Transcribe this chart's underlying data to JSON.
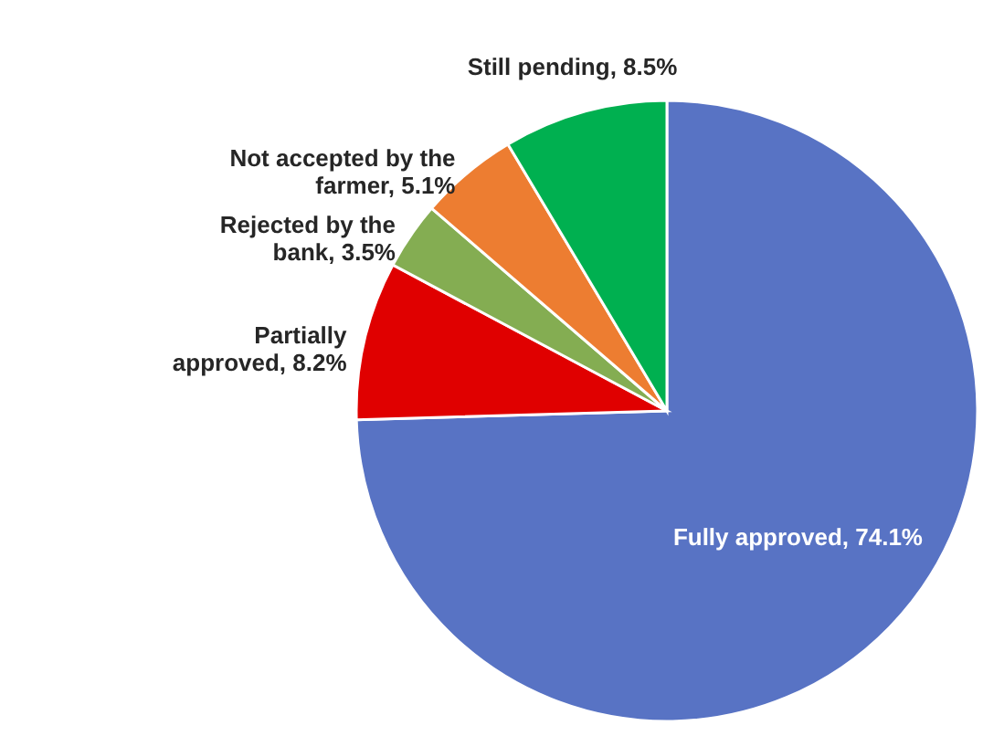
{
  "chart_data": {
    "type": "pie",
    "categories": [
      "Fully approved",
      "Partially approved",
      "Rejected by the bank",
      "Not accepted by the farmer",
      "Still pending"
    ],
    "values": [
      74.1,
      8.2,
      3.5,
      5.1,
      8.5
    ],
    "value_labels": [
      "74.1%",
      "8.2%",
      "3.5%",
      "5.1%",
      "8.5%"
    ],
    "colors": [
      "#5873c4",
      "#e00000",
      "#84ad52",
      "#ed7d31",
      "#00b050"
    ]
  }
}
